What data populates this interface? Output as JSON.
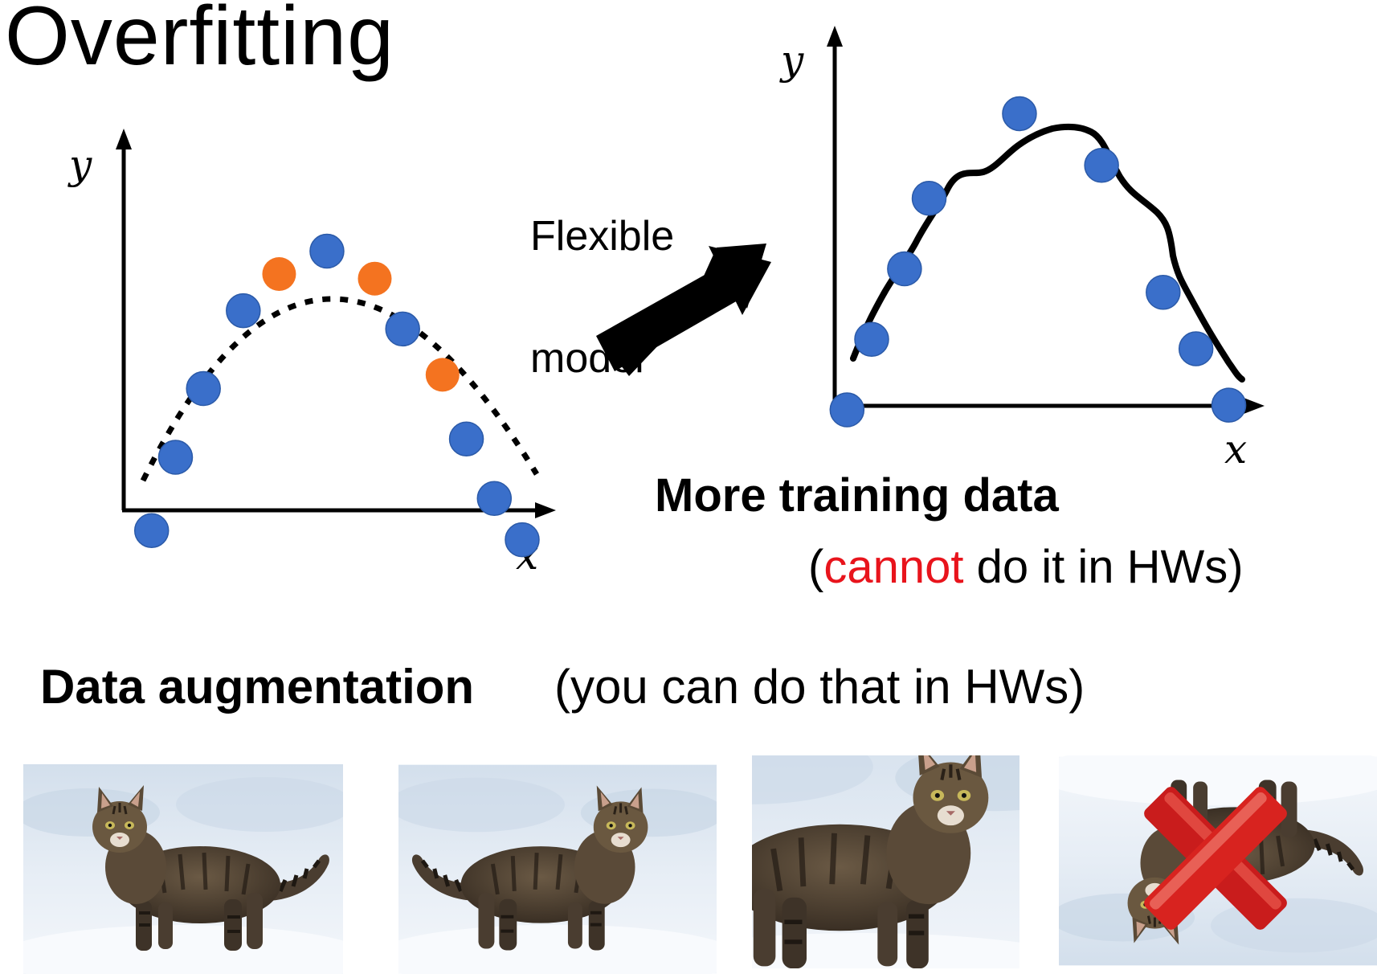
{
  "title": "Overfitting",
  "left_plot": {
    "x_label": "x",
    "y_label": "y",
    "fit_style": "dotted",
    "colors": {
      "train": "#3a6fca",
      "test": "#f47320",
      "curve": "#000000"
    },
    "train_points": [
      [
        0.07,
        0.14
      ],
      [
        0.13,
        0.3
      ],
      [
        0.2,
        0.45
      ],
      [
        0.3,
        0.62
      ],
      [
        0.51,
        0.75
      ],
      [
        0.7,
        0.58
      ],
      [
        0.86,
        0.34
      ],
      [
        0.93,
        0.21
      ],
      [
        1.0,
        0.12
      ]
    ],
    "test_points": [
      [
        0.39,
        0.7
      ],
      [
        0.63,
        0.69
      ],
      [
        0.8,
        0.48
      ]
    ]
  },
  "transition": {
    "line1": "Flexible",
    "line2": "model",
    "arrow": "bold-arrow-up-right"
  },
  "right_plot": {
    "x_label": "x",
    "y_label": "y",
    "fit_style": "wiggly-solid",
    "train_points": [
      [
        0.03,
        0.2
      ],
      [
        0.09,
        0.35
      ],
      [
        0.17,
        0.5
      ],
      [
        0.23,
        0.65
      ],
      [
        0.45,
        0.83
      ],
      [
        0.65,
        0.72
      ],
      [
        0.8,
        0.45
      ],
      [
        0.88,
        0.33
      ],
      [
        0.96,
        0.21
      ]
    ]
  },
  "more_data": {
    "heading": "More training data",
    "paren_open": "(",
    "cannot": "cannot",
    "rest": " do it in HWs)",
    "accent": "#e8141c"
  },
  "augmentation": {
    "heading": "Data augmentation",
    "note": "(you can do that in HWs)",
    "images": [
      {
        "name": "original",
        "transform": "none",
        "valid": true
      },
      {
        "name": "mirrored",
        "transform": "horizontal-flip",
        "valid": true
      },
      {
        "name": "zoomed",
        "transform": "crop-zoom",
        "valid": true
      },
      {
        "name": "upside-down",
        "transform": "vertical-flip",
        "valid": false,
        "mark": "red-cross-icon"
      }
    ]
  }
}
